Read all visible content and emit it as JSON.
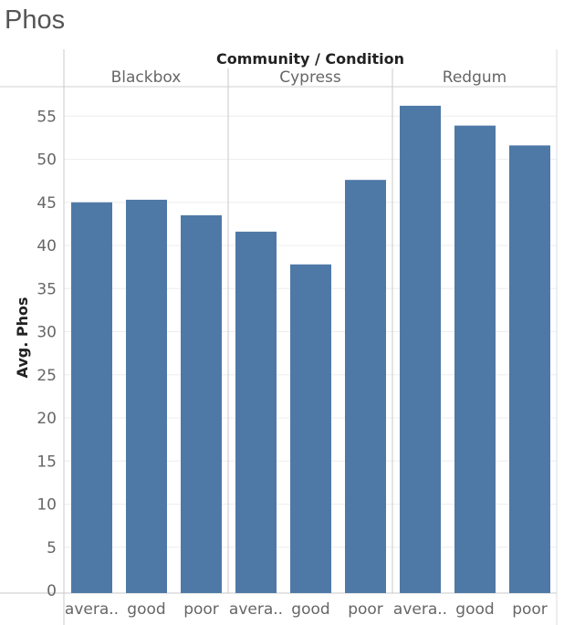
{
  "page": {
    "title": "Phos"
  },
  "chart_data": {
    "type": "bar",
    "title": "Phos",
    "column_header": "Community / Condition",
    "ylabel": "Avg. Phos",
    "ylim": [
      0,
      58
    ],
    "yticks": [
      0,
      5,
      10,
      15,
      20,
      25,
      30,
      35,
      40,
      45,
      50,
      55
    ],
    "grid": true,
    "bar_color": "#4e79a7",
    "groups": [
      {
        "name": "Blackbox",
        "categories": [
          "avera..",
          "good",
          "poor"
        ],
        "values": [
          45.0,
          45.3,
          43.5
        ]
      },
      {
        "name": "Cypress",
        "categories": [
          "avera..",
          "good",
          "poor"
        ],
        "values": [
          41.6,
          37.8,
          47.6
        ]
      },
      {
        "name": "Redgum",
        "categories": [
          "avera..",
          "good",
          "poor"
        ],
        "values": [
          56.2,
          53.9,
          51.6
        ]
      }
    ]
  }
}
